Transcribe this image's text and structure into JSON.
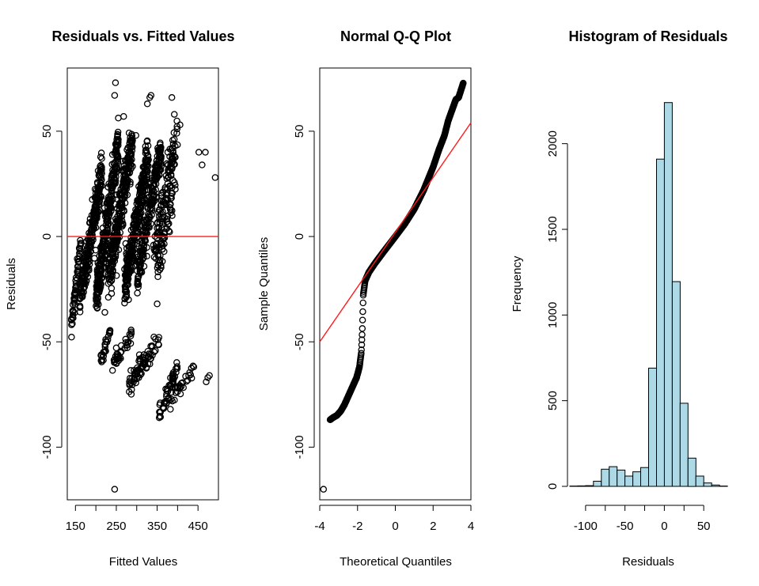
{
  "chart_data": [
    {
      "type": "scatter",
      "title": "Residuals vs. Fitted Values",
      "xlabel": "Fitted Values",
      "ylabel": "Residuals",
      "xlim": [
        130,
        500
      ],
      "ylim": [
        -125,
        80
      ],
      "xticks": [
        150,
        200,
        250,
        300,
        350,
        400,
        450
      ],
      "xtick_labels": [
        "150",
        "",
        "250",
        "",
        "350",
        "",
        "450"
      ],
      "yticks": [
        -100,
        -50,
        0,
        50
      ],
      "ytick_labels": [
        "-100",
        "-50",
        "0",
        "50"
      ],
      "hline": 0,
      "hline_color": "#ff0000",
      "point_groups": [
        {
          "x": [
            140,
            165
          ],
          "y": [
            -42,
            0
          ],
          "n": 60,
          "spread": 4
        },
        {
          "x": [
            160,
            215
          ],
          "y": [
            -30,
            30
          ],
          "n": 260,
          "spread": 8
        },
        {
          "x": [
            200,
            255
          ],
          "y": [
            -30,
            45
          ],
          "n": 300,
          "spread": 9
        },
        {
          "x": [
            230,
            290
          ],
          "y": [
            -20,
            45
          ],
          "n": 300,
          "spread": 9
        },
        {
          "x": [
            270,
            330
          ],
          "y": [
            -25,
            40
          ],
          "n": 300,
          "spread": 9
        },
        {
          "x": [
            300,
            360
          ],
          "y": [
            -20,
            42
          ],
          "n": 220,
          "spread": 8
        },
        {
          "x": [
            340,
            400
          ],
          "y": [
            -10,
            50
          ],
          "n": 120,
          "spread": 8
        },
        {
          "x": [
            350,
            395
          ],
          "y": [
            -15,
            25
          ],
          "n": 60,
          "spread": 6
        },
        {
          "x": [
            210,
            235
          ],
          "y": [
            -60,
            -45
          ],
          "n": 25,
          "spread": 3
        },
        {
          "x": [
            240,
            290
          ],
          "y": [
            -62,
            -45
          ],
          "n": 35,
          "spread": 3
        },
        {
          "x": [
            280,
            330
          ],
          "y": [
            -72,
            -52
          ],
          "n": 45,
          "spread": 4
        },
        {
          "x": [
            300,
            360
          ],
          "y": [
            -66,
            -48
          ],
          "n": 30,
          "spread": 4
        },
        {
          "x": [
            355,
            400
          ],
          "y": [
            -86,
            -62
          ],
          "n": 55,
          "spread": 4
        },
        {
          "x": [
            380,
            440
          ],
          "y": [
            -80,
            -62
          ],
          "n": 30,
          "spread": 3
        }
      ],
      "extra_points": [
        {
          "x": 248,
          "y": 73
        },
        {
          "x": 246,
          "y": 67
        },
        {
          "x": 268,
          "y": 57
        },
        {
          "x": 332,
          "y": 66
        },
        {
          "x": 335,
          "y": 67
        },
        {
          "x": 326,
          "y": 63
        },
        {
          "x": 386,
          "y": 66
        },
        {
          "x": 392,
          "y": 58
        },
        {
          "x": 406,
          "y": 53
        },
        {
          "x": 468,
          "y": 40
        },
        {
          "x": 492,
          "y": 28
        },
        {
          "x": 452,
          "y": 40
        },
        {
          "x": 460,
          "y": 34
        },
        {
          "x": 478,
          "y": -66
        },
        {
          "x": 474,
          "y": -67
        },
        {
          "x": 470,
          "y": -69
        },
        {
          "x": 246,
          "y": -120
        },
        {
          "x": 222,
          "y": -36
        },
        {
          "x": 280,
          "y": -30
        },
        {
          "x": 350,
          "y": -32
        },
        {
          "x": 298,
          "y": 48
        },
        {
          "x": 376,
          "y": 40
        }
      ]
    },
    {
      "type": "scatter",
      "title": "Normal Q-Q Plot",
      "xlabel": "Theoretical Quantiles",
      "ylabel": "Sample Quantiles",
      "xlim": [
        -4,
        4
      ],
      "ylim": [
        -125,
        80
      ],
      "xticks": [
        -4,
        -2,
        0,
        2,
        4
      ],
      "xtick_labels": [
        "-4",
        "-2",
        "0",
        "2",
        "4"
      ],
      "yticks": [
        -100,
        -50,
        0,
        50
      ],
      "ytick_labels": [
        "-100",
        "-50",
        "0",
        "50"
      ],
      "qq_curve": [
        [
          -3.8,
          -120
        ],
        [
          -3.45,
          -87
        ],
        [
          -3.3,
          -86
        ],
        [
          -3.1,
          -85
        ],
        [
          -2.9,
          -83
        ],
        [
          -2.7,
          -80
        ],
        [
          -2.5,
          -76
        ],
        [
          -2.3,
          -72
        ],
        [
          -2.05,
          -67
        ],
        [
          -1.9,
          -62
        ],
        [
          -1.8,
          -55
        ],
        [
          -1.75,
          -45
        ],
        [
          -1.72,
          -35
        ],
        [
          -1.7,
          -28
        ],
        [
          -1.6,
          -21
        ],
        [
          -1.4,
          -17
        ],
        [
          -1.1,
          -13
        ],
        [
          -0.6,
          -7
        ],
        [
          0,
          0
        ],
        [
          0.5,
          6
        ],
        [
          1.0,
          13
        ],
        [
          1.5,
          22
        ],
        [
          2.0,
          33
        ],
        [
          2.3,
          41
        ],
        [
          2.6,
          48
        ],
        [
          2.8,
          55
        ],
        [
          3.0,
          60
        ],
        [
          3.2,
          65
        ],
        [
          3.35,
          66
        ],
        [
          3.6,
          73
        ]
      ],
      "qq_line": {
        "x": [
          -4,
          4
        ],
        "y": [
          -50,
          54
        ]
      },
      "line_color": "#ff0000"
    },
    {
      "type": "bar",
      "title": "Histogram of Residuals",
      "xlabel": "Residuals",
      "ylabel": "Frequency",
      "xlim": [
        -125,
        85
      ],
      "ylim": [
        0,
        2400
      ],
      "xticks": [
        -100,
        -75,
        -50,
        -25,
        0,
        25,
        50
      ],
      "xtick_labels": [
        "-100",
        "",
        "-50",
        "",
        "0",
        "",
        "50"
      ],
      "yticks": [
        0,
        500,
        1000,
        1500,
        2000
      ],
      "ytick_labels": [
        "0",
        "500",
        "1000",
        "1500",
        "2000"
      ],
      "bin_width": 10,
      "bins": [
        {
          "x0": -120,
          "count": 2
        },
        {
          "x0": -110,
          "count": 3
        },
        {
          "x0": -100,
          "count": 4
        },
        {
          "x0": -90,
          "count": 30
        },
        {
          "x0": -80,
          "count": 100
        },
        {
          "x0": -70,
          "count": 115
        },
        {
          "x0": -60,
          "count": 95
        },
        {
          "x0": -50,
          "count": 60
        },
        {
          "x0": -40,
          "count": 85
        },
        {
          "x0": -30,
          "count": 110
        },
        {
          "x0": -20,
          "count": 690
        },
        {
          "x0": -10,
          "count": 1910
        },
        {
          "x0": 0,
          "count": 2240
        },
        {
          "x0": 10,
          "count": 1195
        },
        {
          "x0": 20,
          "count": 485
        },
        {
          "x0": 30,
          "count": 165
        },
        {
          "x0": 40,
          "count": 60
        },
        {
          "x0": 50,
          "count": 20
        },
        {
          "x0": 60,
          "count": 8
        },
        {
          "x0": 70,
          "count": 2
        }
      ],
      "bar_color": "#add8e6"
    }
  ]
}
